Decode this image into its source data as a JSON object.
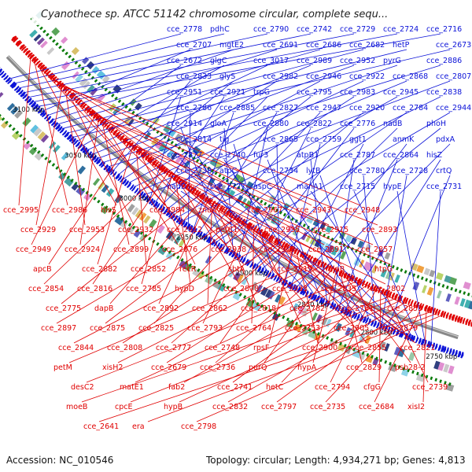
{
  "title": "Cyanothece sp. ATCC 51142 chromosome circular, complete sequ...",
  "footer": {
    "accession": "Accession: NC_010546",
    "summary": "Topology: circular; Length: 4,934,271 bp; Genes: 4,813"
  },
  "colors": {
    "forward": "#0b12d8",
    "reverse": "#e00000",
    "backbone": "#888888",
    "tick": "#0a7a0a"
  },
  "scale_labels": [
    "3150 kbp",
    "3100 kbp",
    "3050 kbp",
    "3000 kbp",
    "2950 kbp",
    "2900 kbp",
    "2850 kbp",
    "2800 kbp",
    "2750 kbp"
  ],
  "forward_genes": [
    "cce_2778",
    "pdhC",
    "cce_2790",
    "cce_2742",
    "cce_2729",
    "cce_2724",
    "cce_2716",
    "cce_2707",
    "mgtE2",
    "cce_2691",
    "cce_2686",
    "cce_2682",
    "hetP",
    "cce_2673",
    "cce_2672",
    "glgC",
    "cce_3017",
    "cce_2989",
    "cce_2952",
    "pyrG",
    "cce_2886",
    "cce_2833",
    "glyS",
    "cce_2982",
    "cce_2946",
    "cce_2922",
    "cce_2868",
    "cce_2807",
    "cce_2951",
    "cce_2921",
    "trpG",
    "cce_2795",
    "cce_2983",
    "cce_2945",
    "cce_2838",
    "cce_2786",
    "cce_2885",
    "cce_2827",
    "cce_2947",
    "cce_2920",
    "cce_2784",
    "cce_2944",
    "cce_2914",
    "gloA",
    "cce_2880",
    "cce_2822",
    "cce_2776",
    "nadB",
    "phoH",
    "cce_2814",
    "tig",
    "cce_2865",
    "cce_2759",
    "ggt1",
    "anmK",
    "pdxA",
    "cce_2877",
    "cce_2740",
    "fur3",
    "atpB1",
    "cce_2787",
    "cce_2864",
    "hisZ",
    "cce_2738",
    "atpC",
    "cce_2734",
    "lytB",
    "cce_2780",
    "cce_2728",
    "crtQ",
    "nadD",
    "cce_2727",
    "aspC",
    "manA1",
    "cce_2715",
    "hypE",
    "cce_2731"
  ],
  "reverse_genes": [
    "cce_2995",
    "cce_2986",
    "hisS",
    "cce_2984",
    "znuA",
    "cce_2967",
    "cce_2943",
    "cce_2948",
    "cce_2929",
    "cce_2953",
    "cce_2932",
    "cce_2912",
    "petC1",
    "cce_2935",
    "cce_2915",
    "cce_2893",
    "cce_2949",
    "cce_2924",
    "cce_2899",
    "cce_2876",
    "cce_2938",
    "cce_2918",
    "cce_2891",
    "cce_2857",
    "apcB",
    "cce_2882",
    "cce_2852",
    "recR",
    "sbtA",
    "cce_2919",
    "miaB",
    "htpG",
    "cce_2854",
    "cce_2816",
    "cce_2785",
    "hypD",
    "cce_2878",
    "cce_2933",
    "cce_2835",
    "cce_2802",
    "cce_2775",
    "dapB",
    "cce_2892",
    "cce_2862",
    "cce_2818",
    "cce_2782",
    "cce_2761",
    "cce_2853",
    "cce_2897",
    "cce_2875",
    "cce_2825",
    "cce_2793",
    "cce_2764",
    "cce_2753",
    "cce_2905",
    "cce_2879",
    "cce_2844",
    "cce_2808",
    "cce_2777",
    "cce_2748",
    "rpsF",
    "cce_2900",
    "cce_2855",
    "cce_2821",
    "petM",
    "xisH2",
    "cce_2679",
    "cce_2736",
    "purQ",
    "hypA",
    "cce_2829",
    "psb28-2",
    "desC2",
    "matE1",
    "fab2",
    "cce_2741",
    "hetC",
    "cce_2794",
    "cfgG",
    "cce_2739",
    "moeB",
    "cpcE",
    "hypB",
    "cce_2832",
    "cce_2797",
    "cce_2735",
    "cce_2684",
    "xisI2",
    "cce_2641",
    "era",
    "cce_2798"
  ]
}
